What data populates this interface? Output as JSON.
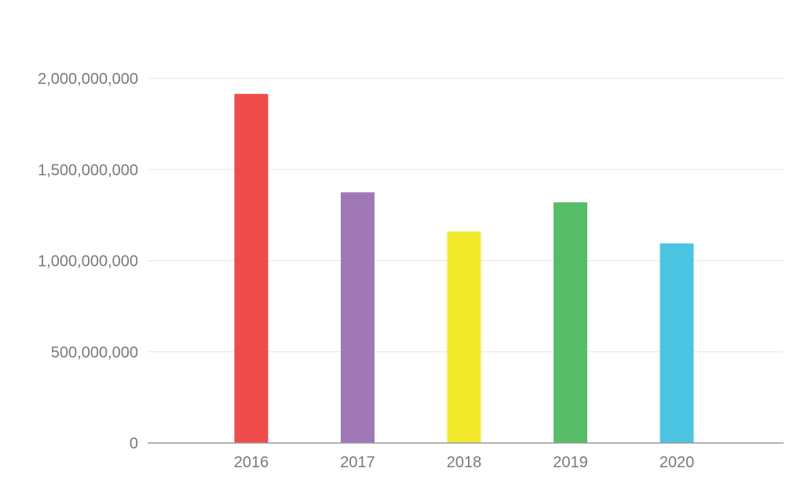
{
  "chart_data": {
    "type": "bar",
    "title": "",
    "xlabel": "",
    "ylabel": "",
    "categories": [
      "2016",
      "2017",
      "2018",
      "2019",
      "2020"
    ],
    "values": [
      1915000000,
      1375000000,
      1160000000,
      1320000000,
      1095000000
    ],
    "colors": [
      "#ef4b4a",
      "#a078b6",
      "#f2e92b",
      "#58bd68",
      "#4bc4e2"
    ],
    "ylim": [
      0,
      2000000000
    ],
    "yticks": [
      0,
      500000000,
      1000000000,
      1500000000,
      2000000000
    ],
    "ytick_labels": [
      "0",
      "500,000,000",
      "1,000,000,000",
      "1,500,000,000",
      "2,000,000,000"
    ],
    "grid": true,
    "legend": "none"
  }
}
